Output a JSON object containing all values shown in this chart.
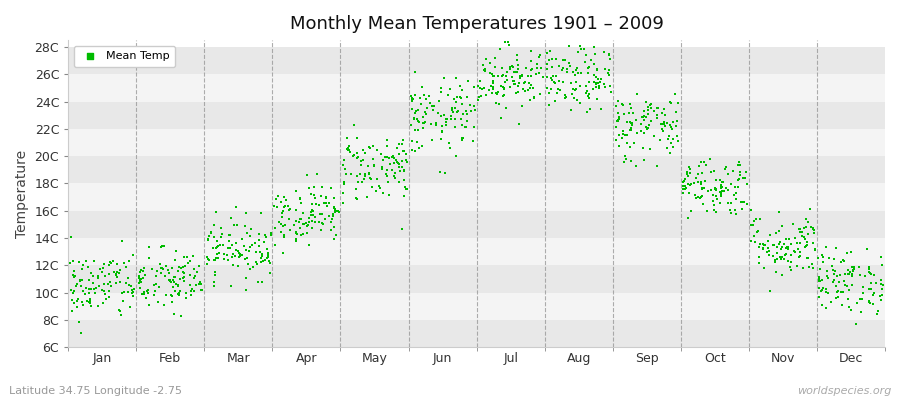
{
  "title": "Monthly Mean Temperatures 1901 – 2009",
  "ylabel": "Temperature",
  "subtitle": "Latitude 34.75 Longitude -2.75",
  "watermark": "worldspecies.org",
  "legend_label": "Mean Temp",
  "dot_color": "#00bb00",
  "dot_size": 3,
  "bg_color": "#ffffff",
  "stripe_colors": [
    "#e8e8e8",
    "#f4f4f4"
  ],
  "ytick_labels": [
    "6C",
    "8C",
    "10C",
    "12C",
    "14C",
    "16C",
    "18C",
    "20C",
    "22C",
    "24C",
    "26C",
    "28C"
  ],
  "ytick_values": [
    6,
    8,
    10,
    12,
    14,
    16,
    18,
    20,
    22,
    24,
    26,
    28
  ],
  "ylim": [
    6,
    28.5
  ],
  "months": [
    "Jan",
    "Feb",
    "Mar",
    "Apr",
    "May",
    "Jun",
    "Jul",
    "Aug",
    "Sep",
    "Oct",
    "Nov",
    "Dec"
  ],
  "month_means": [
    10.5,
    10.8,
    13.2,
    15.8,
    19.2,
    22.8,
    25.8,
    25.6,
    22.2,
    17.8,
    13.5,
    10.8
  ],
  "month_stds": [
    1.3,
    1.2,
    1.1,
    1.1,
    1.3,
    1.4,
    1.2,
    1.2,
    1.3,
    1.1,
    1.2,
    1.2
  ],
  "n_years": 109,
  "seed": 42,
  "vline_color": "#999999",
  "spine_color": "#cccccc",
  "tick_color": "#888888"
}
